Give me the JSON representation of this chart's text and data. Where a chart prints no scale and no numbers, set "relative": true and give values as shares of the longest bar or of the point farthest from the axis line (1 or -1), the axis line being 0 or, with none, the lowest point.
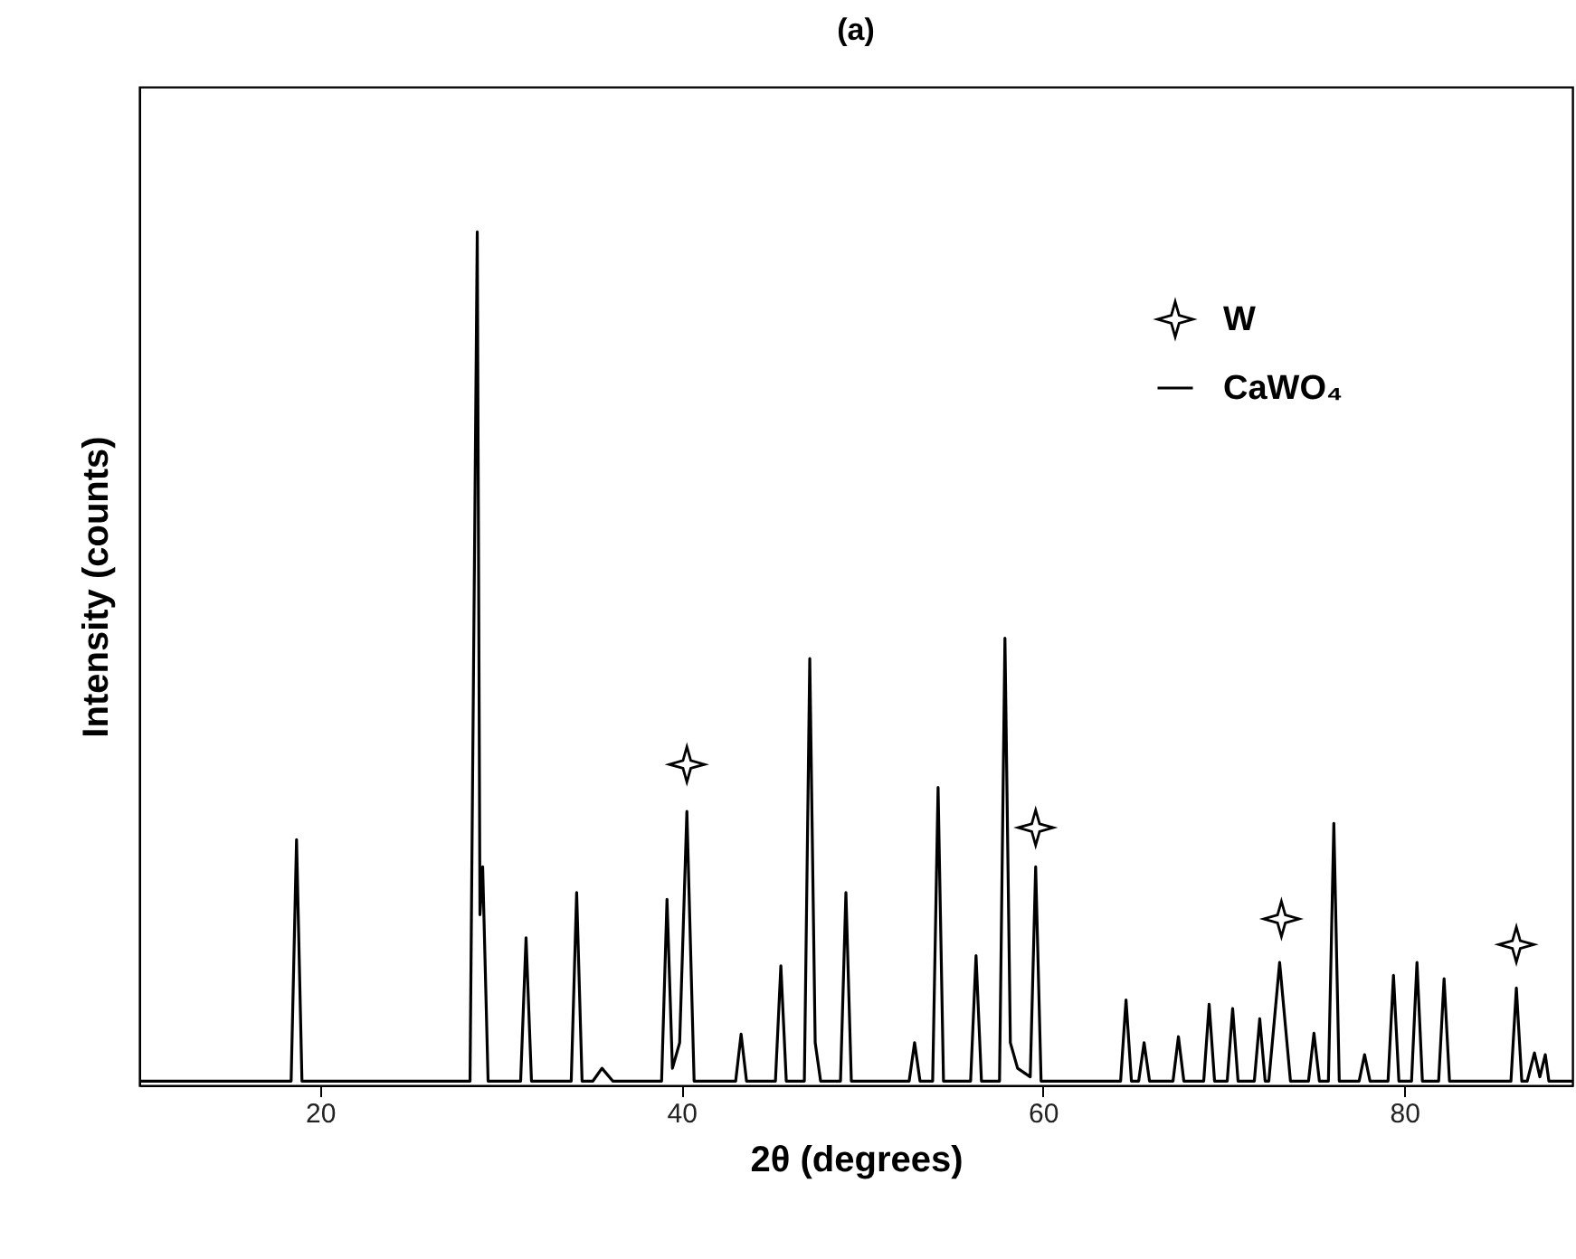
{
  "chart_data": {
    "type": "line",
    "title": "(a)",
    "xlabel": "2θ (degrees)",
    "ylabel": "Intensity (counts)",
    "relative": true,
    "xlim": [
      10,
      89.3
    ],
    "xticks": [
      20,
      40,
      60,
      80
    ],
    "grid": false,
    "legend": "top right",
    "line_style": "solid",
    "series": [
      {
        "name": "W",
        "type": "scatter",
        "marker": "star",
        "color": "#000000",
        "x": [
          40.3,
          59.6,
          73.2,
          86.2
        ],
        "values": [
          0.376,
          0.302,
          0.195,
          0.165
        ]
      },
      {
        "name": "CaWO₄",
        "color": "#000000",
        "x": [
          10,
          18.4,
          18.7,
          19.0,
          28.3,
          28.7,
          28.85,
          29.0,
          29.3,
          31.1,
          31.4,
          31.7,
          33.9,
          34.2,
          34.5,
          35.1,
          35.6,
          36.2,
          38.9,
          39.2,
          39.5,
          39.9,
          40.3,
          40.7,
          43.0,
          43.3,
          43.6,
          45.2,
          45.5,
          45.8,
          46.8,
          47.1,
          47.4,
          47.7,
          48.8,
          49.1,
          49.4,
          52.6,
          52.9,
          53.2,
          53.9,
          54.2,
          54.5,
          56.0,
          56.3,
          56.6,
          57.6,
          57.9,
          58.2,
          58.6,
          59.3,
          59.6,
          59.9,
          64.3,
          64.6,
          64.9,
          65.3,
          65.6,
          65.9,
          67.2,
          67.5,
          67.8,
          68.9,
          69.2,
          69.5,
          70.2,
          70.5,
          70.8,
          71.7,
          72.0,
          72.3,
          72.5,
          73.1,
          73.7,
          74.7,
          75.0,
          75.3,
          75.8,
          76.1,
          76.4,
          77.5,
          77.8,
          78.1,
          79.1,
          79.4,
          79.7,
          80.4,
          80.7,
          81.0,
          81.9,
          82.2,
          82.5,
          85.9,
          86.2,
          86.5,
          86.8,
          87.2,
          87.5,
          87.8,
          88.0,
          89.3
        ],
        "values": [
          0.005,
          0.005,
          0.288,
          0.005,
          0.005,
          1.0,
          0.2,
          0.256,
          0.005,
          0.005,
          0.173,
          0.005,
          0.005,
          0.226,
          0.005,
          0.005,
          0.02,
          0.005,
          0.005,
          0.218,
          0.02,
          0.05,
          0.321,
          0.005,
          0.005,
          0.06,
          0.005,
          0.005,
          0.14,
          0.005,
          0.005,
          0.5,
          0.05,
          0.005,
          0.005,
          0.226,
          0.005,
          0.005,
          0.05,
          0.005,
          0.005,
          0.349,
          0.005,
          0.005,
          0.152,
          0.005,
          0.005,
          0.524,
          0.05,
          0.02,
          0.01,
          0.256,
          0.005,
          0.005,
          0.1,
          0.005,
          0.005,
          0.05,
          0.005,
          0.005,
          0.057,
          0.005,
          0.005,
          0.095,
          0.005,
          0.005,
          0.09,
          0.005,
          0.005,
          0.078,
          0.005,
          0.005,
          0.144,
          0.005,
          0.005,
          0.061,
          0.005,
          0.005,
          0.307,
          0.005,
          0.005,
          0.036,
          0.005,
          0.005,
          0.129,
          0.005,
          0.005,
          0.144,
          0.005,
          0.005,
          0.125,
          0.005,
          0.005,
          0.114,
          0.005,
          0.005,
          0.038,
          0.01,
          0.036,
          0.005,
          0.005
        ]
      }
    ]
  }
}
